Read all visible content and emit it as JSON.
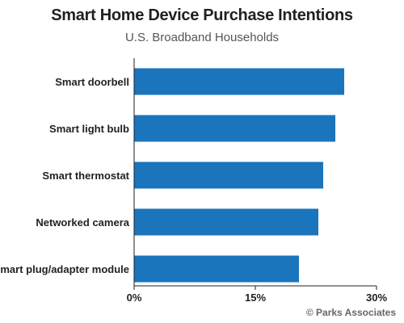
{
  "chart_data": {
    "type": "bar",
    "orientation": "horizontal",
    "title": "Smart Home Device Purchase Intentions",
    "subtitle": "U.S. Broadband Households",
    "categories": [
      "Smart doorbell",
      "Smart light bulb",
      "Smart thermostat",
      "Networked camera",
      "Smart plug/adapter module"
    ],
    "values": [
      26,
      24.9,
      23.4,
      22.8,
      20.4
    ],
    "unit": "%",
    "xlim": [
      0,
      30
    ],
    "xticks": [
      0,
      15,
      30
    ],
    "xtick_labels": [
      "0%",
      "15%",
      "30%"
    ],
    "bar_color": "#1a75bc",
    "grid": false,
    "legend": "none"
  },
  "source": "© Parks Associates"
}
